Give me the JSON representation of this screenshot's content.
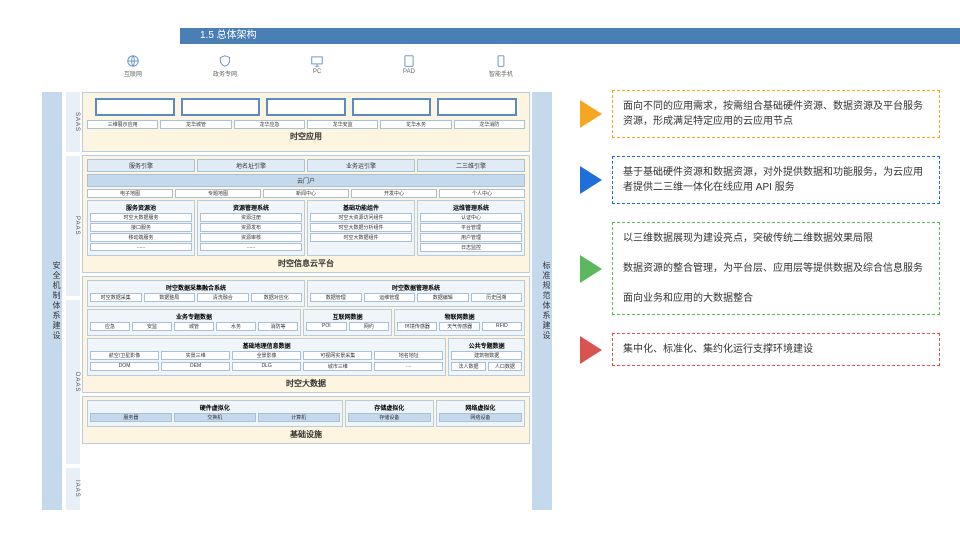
{
  "header": "1.5 总体架构",
  "channels": [
    {
      "label": "互联网",
      "icon": "globe"
    },
    {
      "label": "政务专网",
      "icon": "shield"
    },
    {
      "label": "PC",
      "icon": "pc"
    },
    {
      "label": "PAD",
      "icon": "pad"
    },
    {
      "label": "智能手机",
      "icon": "phone"
    }
  ],
  "sideL": "安全机制体系建设",
  "sideR": "标准规范体系建设",
  "labs": [
    "SAAS",
    "PAAS",
    "DAAS",
    "IAAS"
  ],
  "saas": {
    "apps": [
      "三维展示应用",
      "龙华城管",
      "龙华应急",
      "龙华安监",
      "龙华水务",
      "龙华消防"
    ],
    "title": "时空应用"
  },
  "paas": {
    "r1": [
      "服务引擎",
      "地名址引擎",
      "业务运引擎",
      "二三维引擎"
    ],
    "portal": "云门户",
    "r2": [
      "电子地图",
      "专题地图",
      "新闻中心",
      "开发中心",
      "个人中心"
    ],
    "cols": [
      {
        "t": "服务资源池",
        "items": [
          "时空大数据服务",
          "接口服务",
          "移动端服务",
          "......"
        ]
      },
      {
        "t": "资源管理系统",
        "items": [
          "资源注册",
          "资源发布",
          "资源审核",
          "......"
        ]
      },
      {
        "t": "基础功能组件",
        "items": [
          "时空大资源访问组件",
          "时空大数据分析组件",
          "时空大数据组件"
        ]
      },
      {
        "t": "运维管理系统",
        "items": [
          "认证中心",
          "平台管理",
          "用户管理",
          "日志监控"
        ]
      }
    ],
    "title": "时空信息云平台"
  },
  "daas": {
    "r1": [
      {
        "t": "时空数据采集融合系统",
        "items": [
          "时空数据采集",
          "数据整局",
          "清洗融合",
          "数据对应化"
        ]
      },
      {
        "t": "时空数据管理系统",
        "items": [
          "数据管理",
          "运维管理",
          "数据编辑",
          "历史回溯"
        ]
      }
    ],
    "r2": [
      {
        "t": "业务专题数据",
        "items": [
          "应急",
          "安监",
          "城管",
          "水务",
          "消防等"
        ]
      },
      {
        "t": "互联网数据",
        "items": [
          "POI",
          "网约"
        ]
      },
      {
        "t": "物联网数据",
        "items": [
          "环境传感器",
          "天气传感器",
          "RFID"
        ]
      }
    ],
    "r3": [
      {
        "t": "基础地理信息数据",
        "items": [
          [
            "航空/卫星影像",
            "实景三维",
            "全景影像",
            "可视网实景采集",
            "地名地址"
          ],
          [
            "DOM",
            "DEM",
            "DLG",
            "城市三维",
            "...."
          ]
        ]
      },
      {
        "t": "公共专题数据",
        "items": [
          [
            "建筑物数据"
          ],
          [
            "法人数据",
            "人口数据"
          ]
        ]
      }
    ],
    "title": "时空大数据"
  },
  "iaas": {
    "r": [
      {
        "t": "硬件虚拟化",
        "items": [
          "服务器",
          "交换机",
          "计算机"
        ]
      },
      {
        "t": "存储虚拟化",
        "items": [
          "存储设备"
        ]
      },
      {
        "t": "网络虚拟化",
        "items": [
          "网络设备"
        ]
      }
    ],
    "title": "基础设施"
  },
  "notes": [
    {
      "color": "#f5a623",
      "border": "#f5a623",
      "text": "面向不同的应用需求，按需组合基础硬件资源、数据资源及平台服务资源，形成满足特定应用的云应用节点"
    },
    {
      "color": "#1e6fd9",
      "border": "#1e6fd9",
      "text": "基于基础硬件资源和数据资源，对外提供数据和功能服务，为云应用者提供二三维一体化在线应用 API 服务"
    },
    {
      "color": "#5cb85c",
      "border": "#5cb85c",
      "text": "以三维数据展现为建设亮点，突破传统二维数据效果局限\n\n数据资源的整合管理，为平台层、应用层等提供数据及综合信息服务\n\n面向业务和应用的大数据整合"
    },
    {
      "color": "#d9534f",
      "border": "#d9534f",
      "text": "集中化、标准化、集约化运行支撑环境建设"
    }
  ]
}
